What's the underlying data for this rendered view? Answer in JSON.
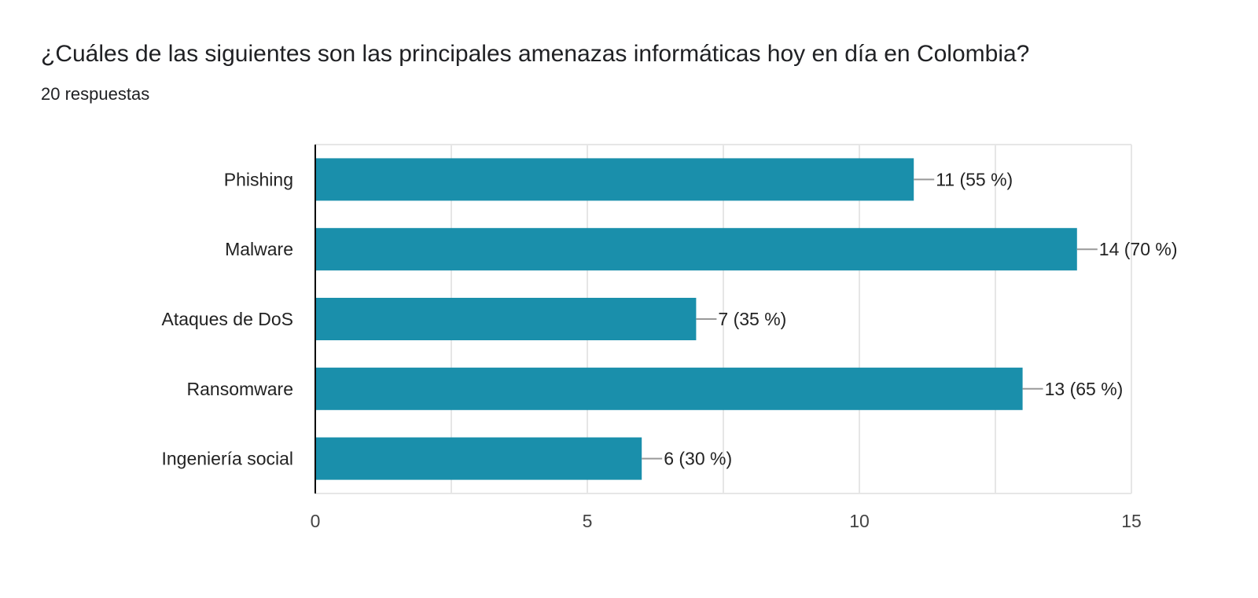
{
  "title": "¿Cuáles de las siguientes son las principales amenazas informáticas hoy en día en Colombia?",
  "subtitle": "20 respuestas",
  "chart_data": {
    "type": "bar",
    "orientation": "horizontal",
    "categories": [
      "Phishing",
      "Malware",
      "Ataques de DoS",
      "Ransomware",
      "Ingeniería social"
    ],
    "values": [
      11,
      14,
      7,
      13,
      6
    ],
    "value_labels": [
      "11 (55 %)",
      "14 (70 %)",
      "7 (35 %)",
      "13 (65 %)",
      "6 (30 %)"
    ],
    "xlim": [
      0,
      15
    ],
    "xticks": [
      0,
      5,
      10,
      15
    ],
    "grid": true,
    "colors": {
      "bar": "#1a8fab",
      "grid": "#e6e6e6",
      "axis": "#000000",
      "leader": "#999999"
    }
  }
}
